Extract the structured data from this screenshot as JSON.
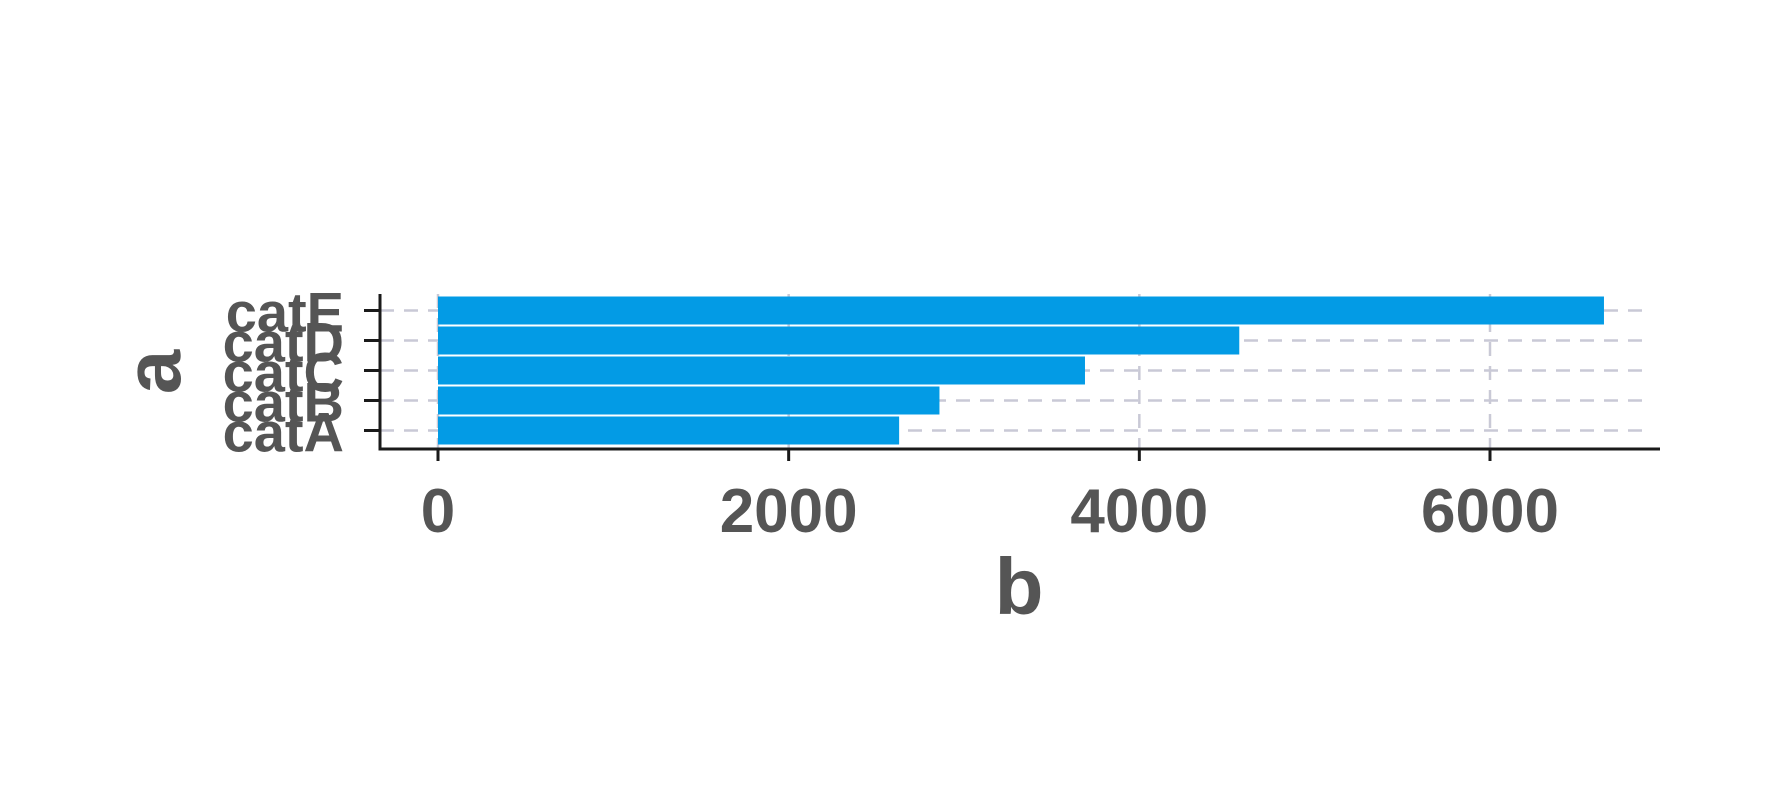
{
  "chart_data": {
    "type": "bar",
    "orientation": "horizontal",
    "categories": [
      "catA",
      "catB",
      "catC",
      "catD",
      "catE"
    ],
    "values": [
      2630,
      2860,
      3690,
      4570,
      6650
    ],
    "xlabel": "b",
    "ylabel": "a",
    "xlim": [
      -330,
      7000
    ],
    "xticks": [
      0,
      2000,
      4000,
      6000
    ],
    "xtick_labels": [
      "0",
      "2000",
      "4000",
      "6000"
    ],
    "grid": true,
    "legend": "none",
    "bar_color": "#039be5",
    "grid_color": "#c9c9d6",
    "text_color": "#555555",
    "axis_color": "#1a1a1a"
  }
}
